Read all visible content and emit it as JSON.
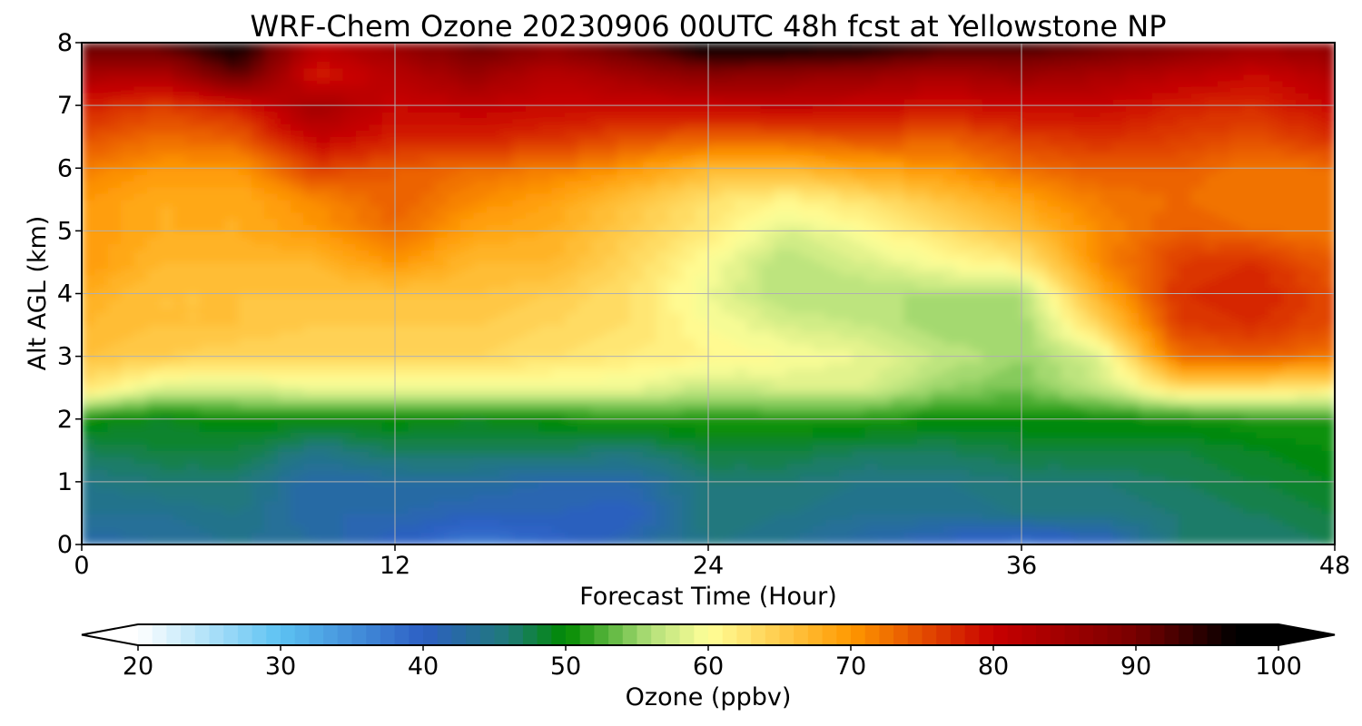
{
  "chart_data": {
    "type": "heatmap",
    "title": "WRF-Chem Ozone  20230906 00UTC 48h fcst at Yellowstone NP",
    "xlabel": "Forecast Time (Hour)",
    "ylabel": "Alt AGL (km)",
    "xlim": [
      0,
      48
    ],
    "ylim": [
      0,
      8
    ],
    "xticks": [
      0,
      12,
      24,
      36,
      48
    ],
    "yticks": [
      0,
      1,
      2,
      3,
      4,
      5,
      6,
      7,
      8
    ],
    "grid": true,
    "x": [
      0,
      3,
      6,
      9,
      12,
      15,
      18,
      21,
      24,
      27,
      30,
      33,
      36,
      39,
      42,
      45,
      48
    ],
    "y": [
      0,
      0.5,
      1,
      1.5,
      2,
      2.5,
      3,
      3.5,
      4,
      4.5,
      5,
      5.5,
      6,
      6.5,
      7,
      7.5,
      8
    ],
    "z": [
      [
        42,
        43,
        44,
        43,
        40,
        37,
        39,
        42,
        45,
        44,
        42,
        40,
        38,
        40,
        46,
        46,
        47
      ],
      [
        44,
        44,
        45,
        42,
        42,
        41,
        41,
        40,
        46,
        45,
        44,
        44,
        45,
        45,
        46,
        47,
        48
      ],
      [
        45,
        46,
        46,
        42,
        43,
        43,
        42,
        42,
        46,
        46,
        45,
        45,
        46,
        46,
        47,
        48,
        49
      ],
      [
        47,
        48,
        48,
        45,
        47,
        47,
        47,
        46,
        48,
        48,
        47,
        47,
        48,
        48,
        48,
        49,
        50
      ],
      [
        50,
        49,
        50,
        50,
        50,
        49,
        50,
        51,
        51,
        51,
        51,
        50,
        50,
        50,
        50,
        51,
        51
      ],
      [
        63,
        58,
        58,
        59,
        59,
        59,
        59,
        59,
        57,
        58,
        58,
        55,
        54,
        57,
        63,
        63,
        62
      ],
      [
        66,
        65,
        64,
        64,
        64,
        64,
        63,
        62,
        61,
        60,
        59,
        57,
        55,
        58,
        73,
        74,
        72
      ],
      [
        67,
        66,
        66,
        65,
        65,
        65,
        64,
        63,
        60,
        58,
        57,
        55,
        55,
        64,
        76,
        77,
        75
      ],
      [
        68,
        66,
        66,
        66,
        66,
        66,
        65,
        63,
        59,
        56,
        56,
        56,
        56,
        68,
        77,
        78,
        75
      ],
      [
        70,
        67,
        67,
        67,
        70,
        67,
        67,
        64,
        60,
        56,
        58,
        60,
        62,
        71,
        76,
        77,
        74
      ],
      [
        70,
        68,
        68,
        70,
        73,
        69,
        68,
        65,
        62,
        58,
        60,
        63,
        66,
        71,
        74,
        73,
        72
      ],
      [
        70,
        68,
        68,
        71,
        74,
        71,
        69,
        66,
        63,
        61,
        63,
        66,
        69,
        72,
        73,
        72,
        72
      ],
      [
        72,
        70,
        70,
        76,
        74,
        73,
        72,
        70,
        67,
        67,
        69,
        70,
        73,
        74,
        74,
        72,
        73
      ],
      [
        75,
        73,
        74,
        81,
        78,
        78,
        77,
        75,
        74,
        74,
        75,
        74,
        76,
        77,
        76,
        75,
        77
      ],
      [
        78,
        76,
        78,
        85,
        80,
        81,
        80,
        80,
        80,
        81,
        80,
        79,
        80,
        80,
        78,
        77,
        80
      ],
      [
        84,
        83,
        92,
        78,
        82,
        86,
        82,
        85,
        88,
        87,
        86,
        84,
        86,
        84,
        82,
        80,
        83
      ],
      [
        92,
        93,
        98,
        82,
        86,
        92,
        88,
        93,
        99,
        99,
        98,
        95,
        94,
        92,
        89,
        86,
        88
      ]
    ],
    "colorbar": {
      "label": "Ozone  (ppbv)",
      "min": 20,
      "max": 100,
      "ticks": [
        20,
        30,
        40,
        50,
        60,
        70,
        80,
        90,
        100
      ],
      "extend": "both",
      "levels": 80,
      "color_stops": [
        {
          "v": 20,
          "c": "#ffffff"
        },
        {
          "v": 30,
          "c": "#5cc2f2"
        },
        {
          "v": 40,
          "c": "#2d5fc4"
        },
        {
          "v": 46,
          "c": "#1f7a78"
        },
        {
          "v": 50,
          "c": "#008a00"
        },
        {
          "v": 56,
          "c": "#b3e07a"
        },
        {
          "v": 60,
          "c": "#ffff99"
        },
        {
          "v": 70,
          "c": "#ff9900"
        },
        {
          "v": 80,
          "c": "#c80000"
        },
        {
          "v": 90,
          "c": "#780000"
        },
        {
          "v": 97,
          "c": "#000000"
        }
      ]
    }
  }
}
